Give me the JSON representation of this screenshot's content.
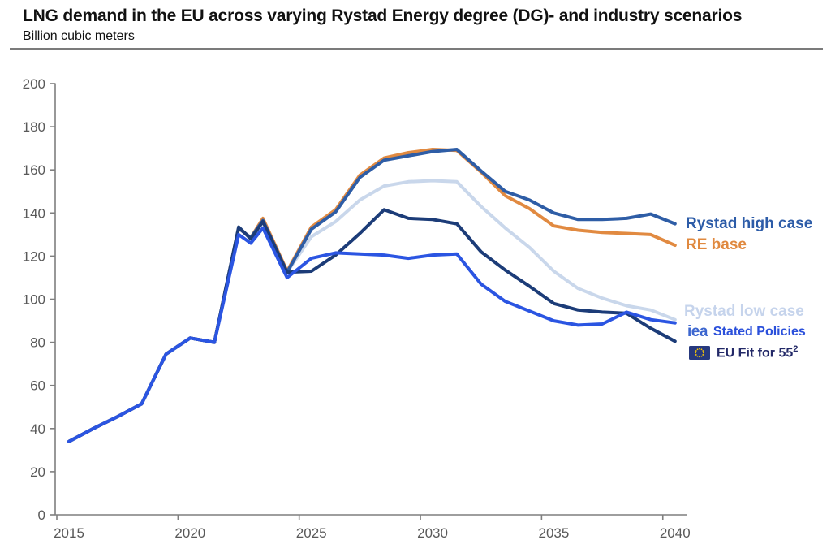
{
  "header": {
    "title": "LNG demand in the EU across varying Rystad Energy degree (DG)- and industry scenarios",
    "subtitle": "Billion cubic meters"
  },
  "legend": {
    "rystad_high": {
      "label": "Rystad high case",
      "color": "#2d5ca8"
    },
    "re_base": {
      "label": "RE base",
      "color": "#e0893f"
    },
    "rystad_low": {
      "label": "Rystad low case",
      "color": "#c6d4ec"
    },
    "stated_policies": {
      "logo": "iea",
      "label": "Stated Policies",
      "color": "#2b50db"
    },
    "eu_fit": {
      "label": "EU Fit for 55",
      "superscript": "2",
      "color": "#232968"
    }
  },
  "chart_data": {
    "type": "line",
    "title": "LNG demand in the EU across varying Rystad Energy degree (DG)- and industry scenarios",
    "ylabel": "Billion cubic meters",
    "xlim": [
      2015,
      2040
    ],
    "ylim": [
      0,
      200
    ],
    "x_ticks": [
      2015,
      2020,
      2025,
      2030,
      2035,
      2040
    ],
    "y_ticks": [
      0,
      20,
      40,
      60,
      80,
      100,
      120,
      140,
      160,
      180,
      200
    ],
    "grid": false,
    "legend_position": "right-of-line-ends",
    "axis_color": "#7f7f7f",
    "tick_label_color": "#595959",
    "x": [
      2015,
      2016,
      2017,
      2018,
      2019,
      2020,
      2021,
      2022,
      2022.5,
      2023,
      2024,
      2025,
      2026,
      2027,
      2028,
      2029,
      2030,
      2031,
      2032,
      2033,
      2034,
      2035,
      2036,
      2037,
      2038,
      2039,
      2040
    ],
    "series": [
      {
        "name": "Rystad low case",
        "color": "#c9d7eb",
        "values": [
          34,
          40,
          45.5,
          51.5,
          74.5,
          82,
          80,
          133,
          128.5,
          135.5,
          112.5,
          129,
          136,
          146,
          152.5,
          154.5,
          155,
          154.5,
          143,
          133,
          124,
          113,
          105,
          100.5,
          97,
          95,
          90.5
        ]
      },
      {
        "name": "RE base",
        "color": "#e18a41",
        "values": [
          34,
          40,
          45.5,
          51.5,
          74.5,
          82,
          80,
          133,
          128.5,
          137.5,
          113,
          133.5,
          141.5,
          157.5,
          165.5,
          168,
          169.5,
          169,
          159,
          148,
          142,
          134,
          132,
          131,
          130.5,
          130,
          125
        ]
      },
      {
        "name": "Rystad high case",
        "color": "#2e5da6",
        "values": [
          34,
          40,
          45.5,
          51.5,
          74.5,
          82,
          80,
          133,
          128.5,
          136.5,
          112.5,
          132.5,
          140.5,
          156.5,
          164.5,
          166.5,
          168.5,
          169.5,
          159.5,
          150,
          146,
          140,
          137,
          137,
          137.5,
          139.5,
          135
        ]
      },
      {
        "name": "EU Fit for 55²",
        "color": "#1c3c78",
        "values": [
          34,
          40,
          45.5,
          51.5,
          74.5,
          82,
          80,
          133.5,
          128,
          136,
          112.5,
          113,
          120.5,
          130.5,
          141.5,
          137.5,
          137,
          135,
          122,
          113.5,
          106,
          98,
          95,
          94,
          93.5,
          86.5,
          80.5
        ]
      },
      {
        "name": "Stated Policies",
        "color": "#2b55e2",
        "values": [
          34,
          40,
          45.5,
          51.5,
          74.5,
          82,
          80,
          130,
          126,
          133,
          110,
          119,
          121.5,
          121,
          120.5,
          119,
          120.5,
          121,
          107,
          99,
          94.5,
          90,
          88,
          88.5,
          94,
          90.5,
          89
        ]
      }
    ]
  }
}
